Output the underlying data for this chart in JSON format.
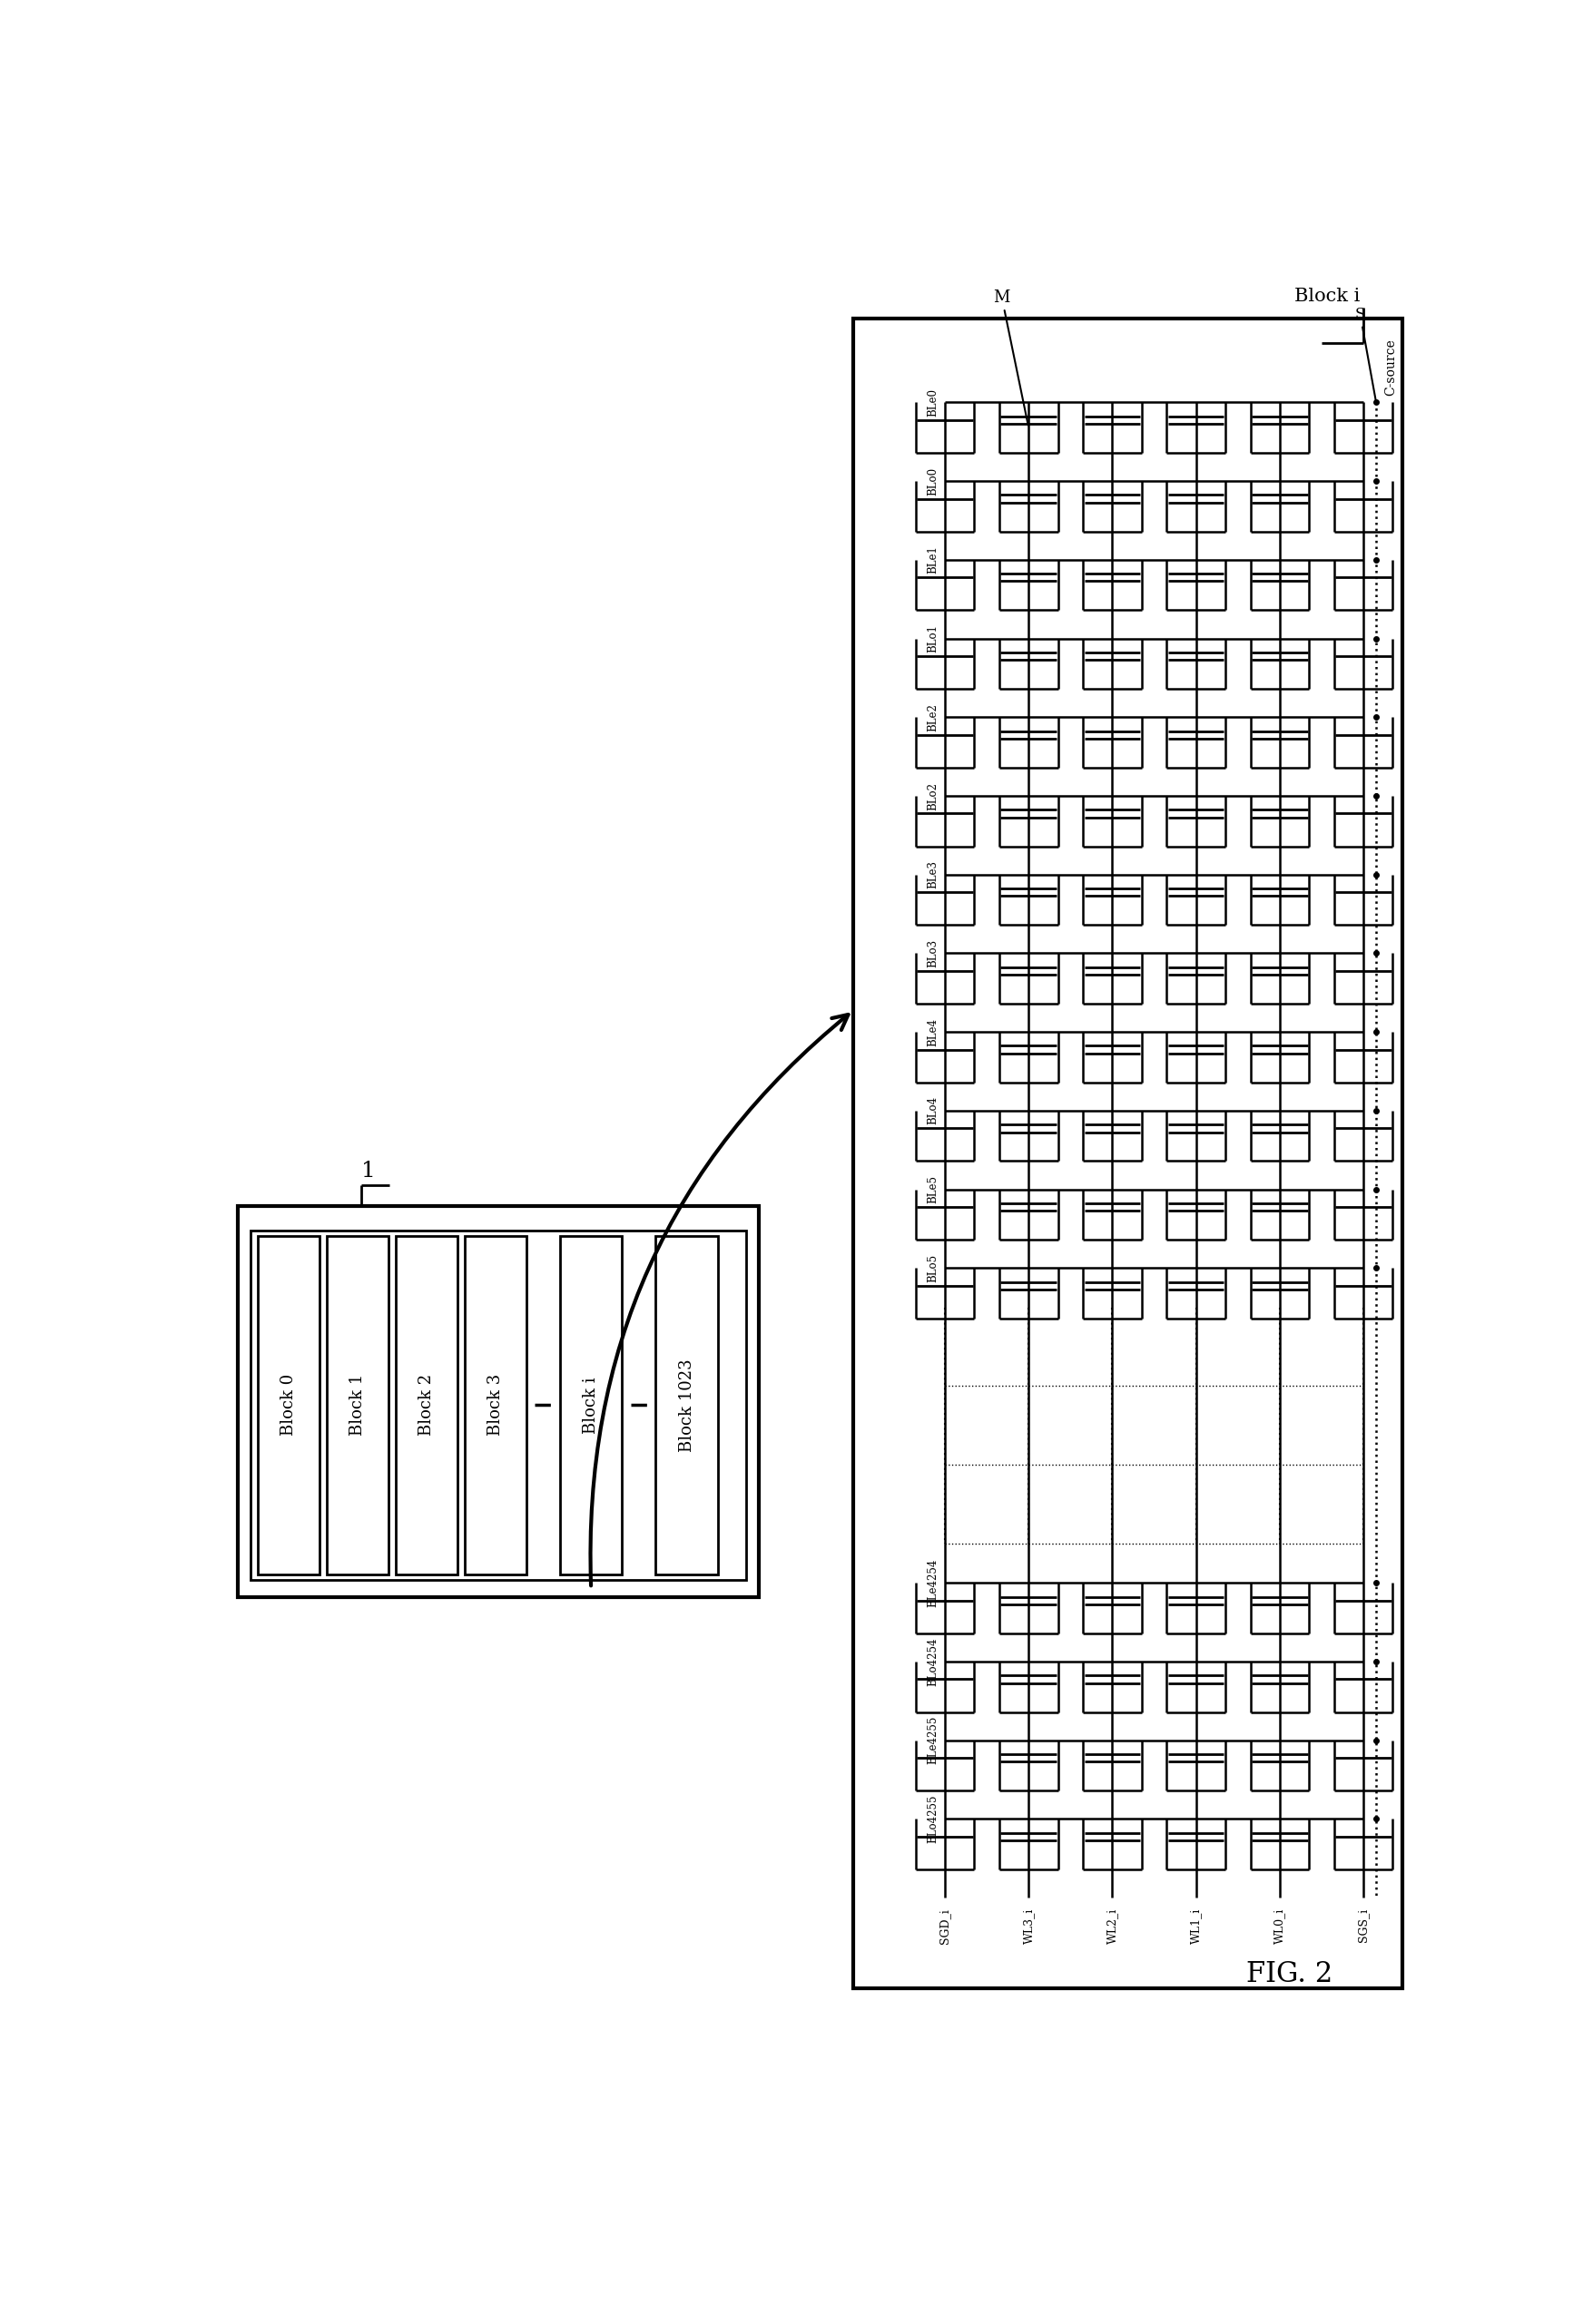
{
  "fig_label": "FIG. 2",
  "bg_color": "#ffffff",
  "blocks": [
    "Block 0",
    "Block 1",
    "Block 2",
    "Block 3",
    "Block i",
    "Block 1023"
  ],
  "wl_labels": [
    "SGD_i",
    "WL3_i",
    "WL2_i",
    "WL1_i",
    "WL0_i",
    "SGS_i"
  ],
  "bl_labels_left": [
    "BLe0",
    "BLo0",
    "BLe1",
    "BLo1",
    "BLe2",
    "BLo2",
    "BLe3",
    "BLo3",
    "BLe4",
    "BLo4",
    "BLe5",
    "BLo5"
  ],
  "bl_labels_right": [
    "BLe4254",
    "BLo4254",
    "BLe4255",
    "BLo4255"
  ],
  "block_i_label": "Block i",
  "fig_label_text": "FIG. 2",
  "M_label": "M",
  "S_label": "S",
  "csource_label": "C-source"
}
